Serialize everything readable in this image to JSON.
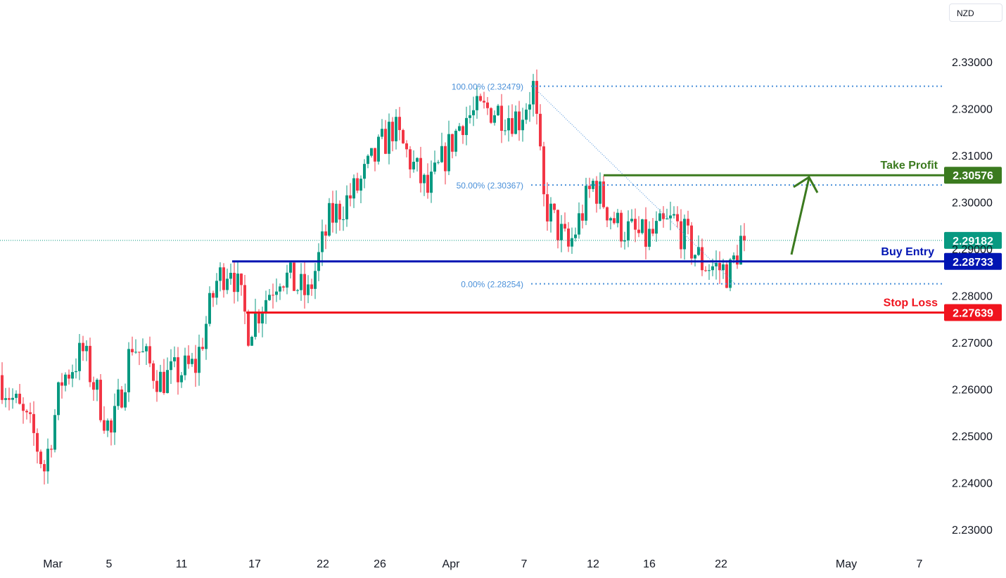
{
  "currency": "NZD",
  "colors": {
    "up": "#089981",
    "down": "#f23645",
    "take_profit": "#3b7a1f",
    "buy_entry": "#0015b3",
    "stop_loss": "#f0141e",
    "fib": "#4a90d9",
    "last": "#089981"
  },
  "chart_data": {
    "type": "candlestick",
    "title": "",
    "y_ticks": [
      "2.33000",
      "2.32000",
      "2.31000",
      "2.30000",
      "2.29000",
      "2.28000",
      "2.27000",
      "2.26000",
      "2.25000",
      "2.24000",
      "2.23000"
    ],
    "ylim": [
      2.23,
      2.33
    ],
    "x_ticks": [
      "Mar",
      "5",
      "11",
      "17",
      "22",
      "26",
      "Apr",
      "7",
      "12",
      "16",
      "22",
      "May",
      "7"
    ],
    "price_path_waypoints": [
      [
        0,
        2.263
      ],
      [
        10,
        2.25
      ],
      [
        13,
        2.243
      ],
      [
        18,
        2.262
      ],
      [
        24,
        2.268
      ],
      [
        32,
        2.25
      ],
      [
        38,
        2.27
      ],
      [
        46,
        2.262
      ],
      [
        56,
        2.265
      ],
      [
        62,
        2.283
      ],
      [
        66,
        2.287
      ],
      [
        71,
        2.273
      ],
      [
        80,
        2.285
      ],
      [
        88,
        2.28
      ],
      [
        94,
        2.296
      ],
      [
        102,
        2.303
      ],
      [
        112,
        2.316
      ],
      [
        122,
        2.302
      ],
      [
        132,
        2.318
      ],
      [
        140,
        2.32
      ],
      [
        148,
        2.318
      ],
      [
        152,
        2.3245
      ],
      [
        155,
        2.3
      ],
      [
        162,
        2.29
      ],
      [
        169,
        2.304
      ],
      [
        176,
        2.295
      ],
      [
        184,
        2.292
      ],
      [
        192,
        2.296
      ],
      [
        200,
        2.287
      ],
      [
        208,
        2.285
      ],
      [
        211,
        2.2918
      ]
    ],
    "last_price": "2.29182",
    "levels": {
      "take_profit": {
        "label": "Take Profit",
        "value": "2.30576"
      },
      "buy_entry": {
        "label": "Buy Entry",
        "value": "2.28733"
      },
      "stop_loss": {
        "label": "Stop Loss",
        "value": "2.27639"
      }
    },
    "fib": [
      {
        "label": "100.00% (2.32479)",
        "value": 2.32479
      },
      {
        "label": "50.00% (2.30367)",
        "value": 2.30367
      },
      {
        "label": "0.00% (2.28254)",
        "value": 2.28254
      }
    ]
  }
}
